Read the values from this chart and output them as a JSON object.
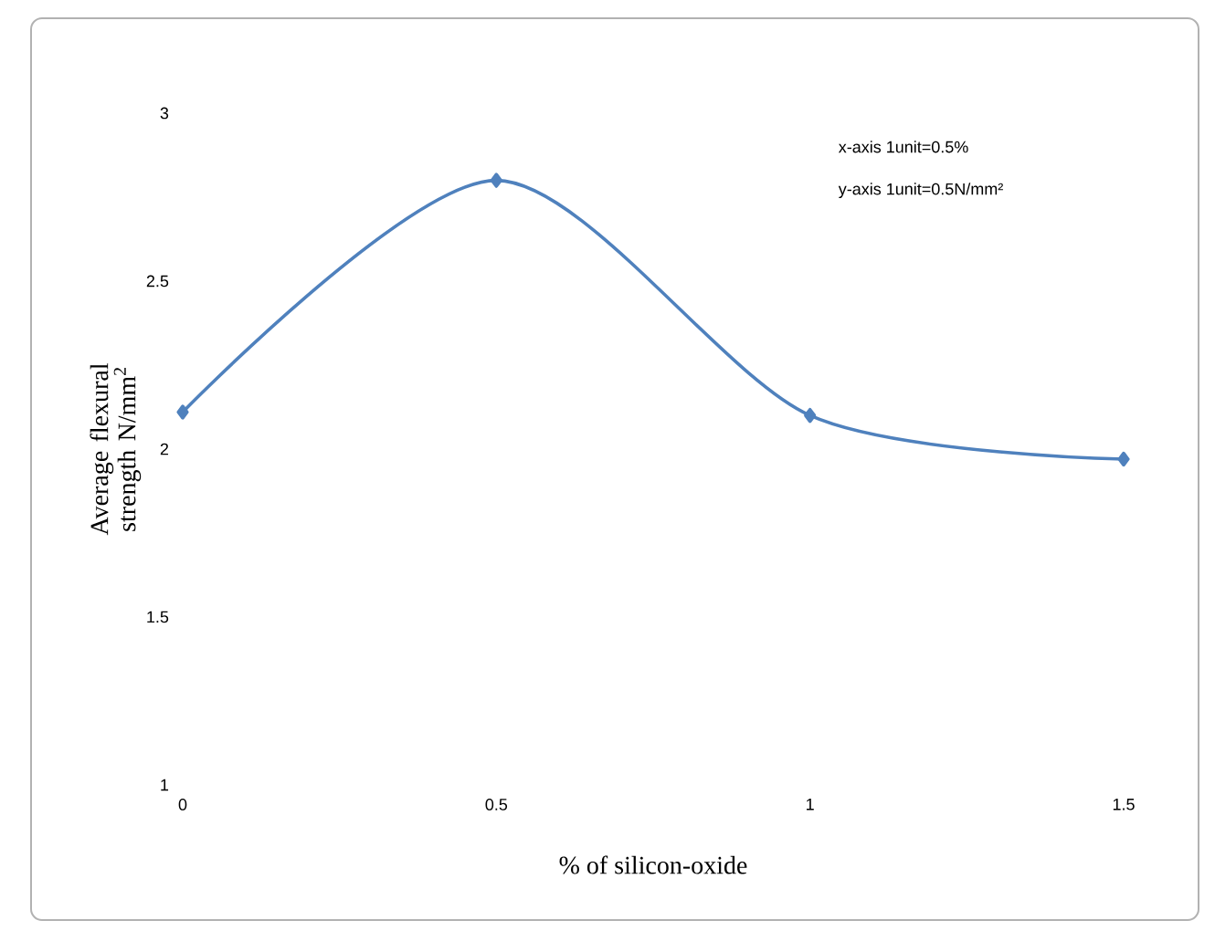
{
  "chart_data": {
    "type": "line",
    "xlabel": "% of silicon-oxide",
    "ylabel": "Average flexural strength N/mm$^{2}$",
    "x": [
      0,
      0.5,
      1,
      1.5
    ],
    "series": [
      {
        "color": "#4f81bd",
        "values": [
          2.11,
          2.8,
          2.1,
          1.97
        ]
      }
    ],
    "xlim": [
      0,
      1.5
    ],
    "ylim": [
      1,
      3
    ],
    "xticks": [
      0,
      0.5,
      1,
      1.5
    ],
    "yticks": [
      1,
      1.5,
      2,
      2.5,
      3
    ],
    "marker": "diamond",
    "annotations": [
      "x-axis 1unit=0.5%",
      "y-axis 1unit=0.5N/mm²"
    ]
  }
}
